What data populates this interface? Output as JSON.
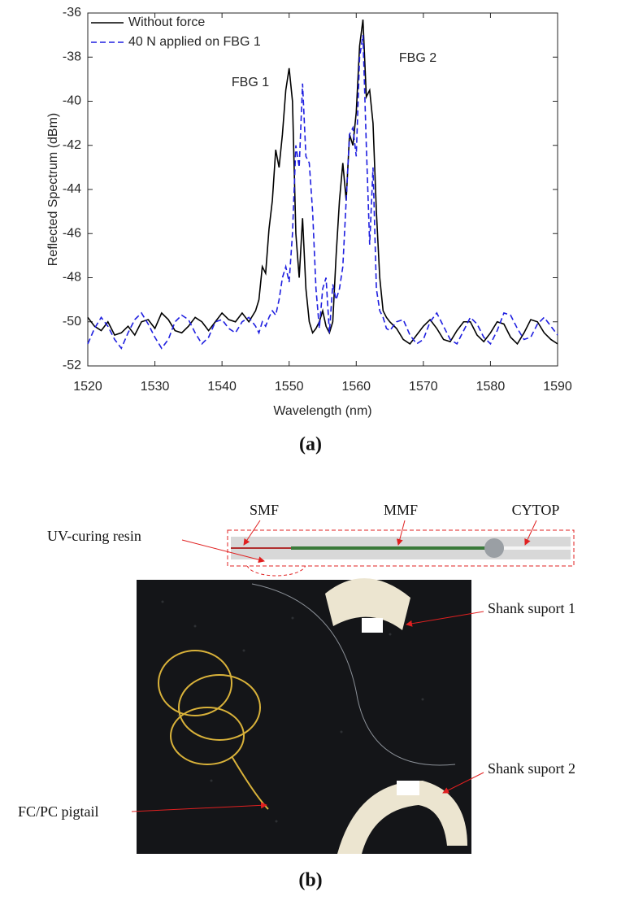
{
  "chart_data": {
    "type": "line",
    "ylabel": "Reflected Spectrum (dBm)",
    "xlabel": "Wavelength (nm)",
    "annotations": [
      "FBG 1",
      "FBG 2"
    ],
    "xlim": [
      1520,
      1590
    ],
    "ylim": [
      -52,
      -36
    ],
    "xticks": [
      1520,
      1530,
      1540,
      1550,
      1560,
      1570,
      1580,
      1590
    ],
    "yticks": [
      -52,
      -50,
      -48,
      -46,
      -44,
      -42,
      -40,
      -38,
      -36
    ],
    "grid": false,
    "legend": "top-left",
    "x": [
      1520,
      1521,
      1522,
      1523,
      1524,
      1525,
      1526,
      1527,
      1528,
      1529,
      1530,
      1531,
      1532,
      1533,
      1534,
      1535,
      1536,
      1537,
      1538,
      1539,
      1540,
      1541,
      1542,
      1543,
      1544,
      1545,
      1545.5,
      1546,
      1546.5,
      1547,
      1547.5,
      1548,
      1548.5,
      1549,
      1549.5,
      1550,
      1550.5,
      1551,
      1551.5,
      1552,
      1552.5,
      1553,
      1553.5,
      1554,
      1554.5,
      1555,
      1555.5,
      1556,
      1556.5,
      1557,
      1557.5,
      1558,
      1558.5,
      1559,
      1559.5,
      1560,
      1560.5,
      1561,
      1561.5,
      1562,
      1562.5,
      1563,
      1563.5,
      1564,
      1564.5,
      1565,
      1566,
      1567,
      1568,
      1569,
      1570,
      1571,
      1572,
      1573,
      1574,
      1575,
      1576,
      1577,
      1578,
      1579,
      1580,
      1581,
      1582,
      1583,
      1584,
      1585,
      1586,
      1587,
      1588,
      1589,
      1590
    ],
    "series": [
      {
        "name": "Without force",
        "color": "#000000",
        "line_style": "solid",
        "values": [
          -49.8,
          -50.2,
          -50.4,
          -50.0,
          -50.6,
          -50.5,
          -50.2,
          -50.6,
          -50.0,
          -49.9,
          -50.3,
          -49.6,
          -49.9,
          -50.4,
          -50.5,
          -50.2,
          -49.8,
          -50.0,
          -50.4,
          -50.0,
          -49.6,
          -49.9,
          -50.0,
          -49.6,
          -50.0,
          -49.5,
          -49.0,
          -47.5,
          -47.8,
          -45.8,
          -44.5,
          -42.2,
          -43.0,
          -41.5,
          -39.5,
          -38.5,
          -40.0,
          -46.0,
          -48.0,
          -45.3,
          -48.5,
          -50.0,
          -50.5,
          -50.3,
          -50.0,
          -49.5,
          -50.2,
          -50.5,
          -50.0,
          -47.0,
          -44.5,
          -42.8,
          -44.5,
          -41.5,
          -42.0,
          -40.5,
          -37.5,
          -36.3,
          -39.8,
          -39.5,
          -41.0,
          -45.0,
          -48.0,
          -49.5,
          -49.8,
          -50.0,
          -50.3,
          -50.8,
          -51.0,
          -50.6,
          -50.2,
          -49.9,
          -50.3,
          -50.8,
          -50.9,
          -50.4,
          -50.0,
          -50.0,
          -50.6,
          -50.9,
          -50.5,
          -50.0,
          -50.1,
          -50.7,
          -51.0,
          -50.5,
          -49.9,
          -50.0,
          -50.5,
          -50.8,
          -51.0
        ]
      },
      {
        "name": "40 N applied on FBG 1",
        "color": "#1f1fe0",
        "line_style": "dashed",
        "values": [
          -51.0,
          -50.3,
          -49.8,
          -50.2,
          -50.8,
          -51.2,
          -50.5,
          -49.9,
          -49.6,
          -50.1,
          -50.7,
          -51.2,
          -50.8,
          -50.0,
          -49.7,
          -49.9,
          -50.5,
          -51.0,
          -50.7,
          -50.0,
          -49.9,
          -50.3,
          -50.5,
          -50.0,
          -49.8,
          -50.2,
          -50.5,
          -50.0,
          -50.2,
          -49.8,
          -49.5,
          -49.7,
          -49.0,
          -48.0,
          -47.5,
          -48.2,
          -46.0,
          -42.0,
          -43.0,
          -39.2,
          -42.5,
          -42.8,
          -45.0,
          -48.5,
          -50.3,
          -48.5,
          -48.0,
          -50.5,
          -48.3,
          -49.0,
          -48.5,
          -47.5,
          -44.5,
          -41.5,
          -41.2,
          -42.5,
          -38.0,
          -37.0,
          -42.0,
          -46.5,
          -43.0,
          -48.5,
          -49.5,
          -49.8,
          -50.3,
          -50.4,
          -50.0,
          -49.9,
          -50.6,
          -51.0,
          -50.8,
          -50.0,
          -49.6,
          -50.2,
          -50.8,
          -51.0,
          -50.4,
          -49.8,
          -50.1,
          -50.7,
          -51.0,
          -50.4,
          -49.6,
          -49.7,
          -50.3,
          -50.8,
          -50.7,
          -50.1,
          -49.8,
          -50.2,
          -50.6
        ]
      }
    ]
  },
  "figure": {
    "label_a": "(a)",
    "label_b": "(b)",
    "panel_b": {
      "smf": "SMF",
      "mmf": "MMF",
      "cytop": "CYTOP",
      "uv_resin": "UV-curing resin",
      "shank_1": "Shank suport 1",
      "shank_2": "Shank suport 2",
      "pigtail": "FC/PC pigtail"
    }
  }
}
